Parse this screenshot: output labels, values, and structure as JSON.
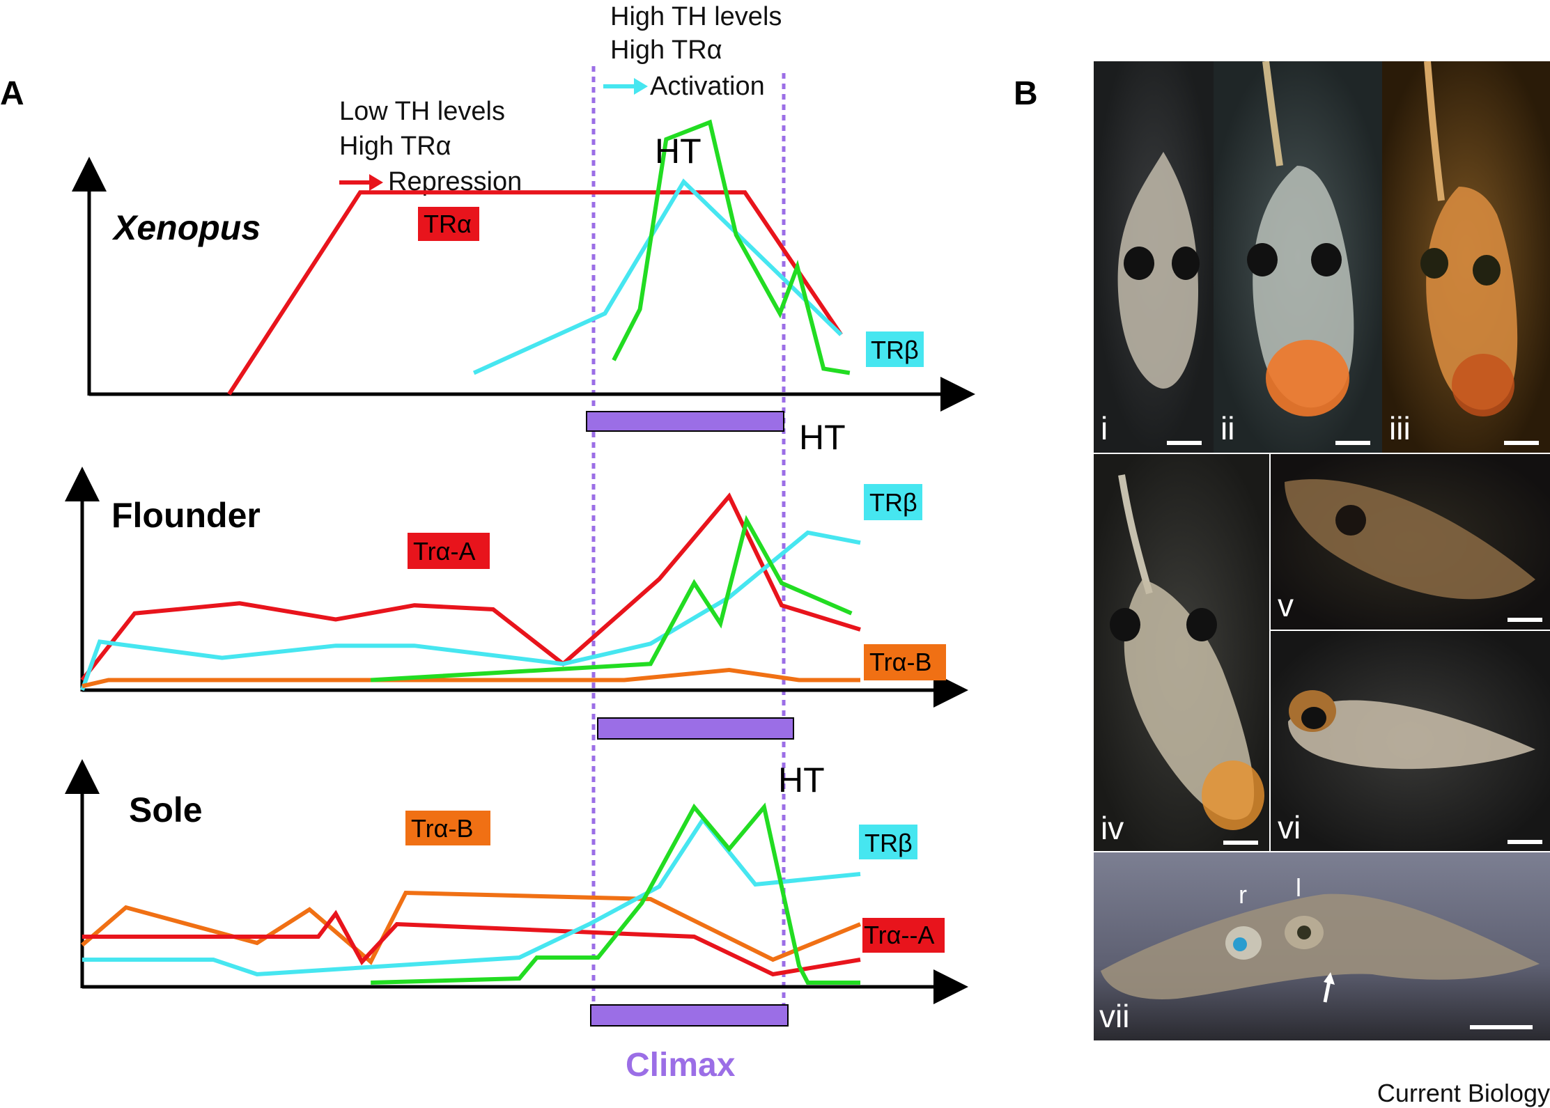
{
  "panel_labels": {
    "a": "A",
    "b": "B"
  },
  "annotations": {
    "repression_lines": [
      "Low TH levels",
      "High TRα",
      "Repression"
    ],
    "activation_lines": [
      "High TH levels",
      "High TRα",
      "Activation"
    ],
    "climax": "Climax"
  },
  "colors": {
    "tra": "#e8141c",
    "trb": "#46e6f0",
    "ht": "#22dc22",
    "tra_b": "#f07014",
    "climax": "#9b6ee6",
    "climax_bar_fill": "#9b6ee6",
    "repression_arrow": "#e8141c",
    "activation_arrow": "#46e6f0"
  },
  "chart_data": [
    {
      "type": "line",
      "species": "Xenopus",
      "tag_labels": {
        "tra": "TRα",
        "trb": "TRβ",
        "ht": "HT"
      },
      "series": [
        {
          "name": "TRα",
          "color": "#e8141c",
          "points": [
            [
              0.16,
              0.0
            ],
            [
              0.31,
              0.95
            ],
            [
              0.75,
              0.95
            ],
            [
              0.86,
              0.28
            ]
          ]
        },
        {
          "name": "TRβ",
          "color": "#46e6f0",
          "points": [
            [
              0.44,
              0.1
            ],
            [
              0.59,
              0.38
            ],
            [
              0.68,
              1.0
            ],
            [
              0.78,
              0.6
            ],
            [
              0.86,
              0.28
            ]
          ]
        },
        {
          "name": "HT",
          "color": "#22dc22",
          "points": [
            [
              0.6,
              0.16
            ],
            [
              0.63,
              0.4
            ],
            [
              0.66,
              1.2
            ],
            [
              0.71,
              1.28
            ],
            [
              0.74,
              0.75
            ],
            [
              0.79,
              0.38
            ],
            [
              0.81,
              0.6
            ],
            [
              0.84,
              0.12
            ],
            [
              0.87,
              0.1
            ]
          ]
        }
      ]
    },
    {
      "type": "line",
      "species": "Flounder",
      "tag_labels": {
        "tra": "Trα-A",
        "trb": "TRβ",
        "tra_b": "Trα-B",
        "ht": "HT"
      },
      "series": [
        {
          "name": "Trα-A",
          "color": "#e8141c",
          "points": [
            [
              0.0,
              0.05
            ],
            [
              0.06,
              0.38
            ],
            [
              0.18,
              0.43
            ],
            [
              0.29,
              0.35
            ],
            [
              0.38,
              0.42
            ],
            [
              0.47,
              0.4
            ],
            [
              0.55,
              0.13
            ],
            [
              0.66,
              0.55
            ],
            [
              0.74,
              0.96
            ],
            [
              0.8,
              0.42
            ],
            [
              0.89,
              0.3
            ]
          ]
        },
        {
          "name": "TRβ",
          "color": "#46e6f0",
          "points": [
            [
              0.0,
              0.0
            ],
            [
              0.02,
              0.24
            ],
            [
              0.16,
              0.16
            ],
            [
              0.29,
              0.22
            ],
            [
              0.38,
              0.22
            ],
            [
              0.55,
              0.13
            ],
            [
              0.65,
              0.23
            ],
            [
              0.74,
              0.46
            ],
            [
              0.83,
              0.78
            ],
            [
              0.89,
              0.73
            ]
          ]
        },
        {
          "name": "Trα-B",
          "color": "#f07014",
          "points": [
            [
              0.0,
              0.02
            ],
            [
              0.03,
              0.05
            ],
            [
              0.62,
              0.05
            ],
            [
              0.74,
              0.1
            ],
            [
              0.82,
              0.05
            ],
            [
              0.89,
              0.05
            ]
          ]
        },
        {
          "name": "HT",
          "color": "#22dc22",
          "points": [
            [
              0.33,
              0.05
            ],
            [
              0.65,
              0.13
            ],
            [
              0.7,
              0.53
            ],
            [
              0.73,
              0.33
            ],
            [
              0.76,
              0.84
            ],
            [
              0.8,
              0.53
            ],
            [
              0.88,
              0.38
            ]
          ]
        }
      ]
    },
    {
      "type": "line",
      "species": "Sole",
      "tag_labels": {
        "tra_b": "Trα-B",
        "trb": "TRβ",
        "tra": "Trα--A",
        "ht": "HT"
      },
      "series": [
        {
          "name": "Trα-B",
          "color": "#f07014",
          "points": [
            [
              0.0,
              0.2
            ],
            [
              0.05,
              0.38
            ],
            [
              0.2,
              0.21
            ],
            [
              0.26,
              0.37
            ],
            [
              0.33,
              0.12
            ],
            [
              0.37,
              0.45
            ],
            [
              0.65,
              0.42
            ],
            [
              0.79,
              0.13
            ],
            [
              0.89,
              0.3
            ]
          ]
        },
        {
          "name": "Trα--A",
          "color": "#e8141c",
          "points": [
            [
              0.0,
              0.24
            ],
            [
              0.27,
              0.24
            ],
            [
              0.29,
              0.35
            ],
            [
              0.32,
              0.12
            ],
            [
              0.36,
              0.3
            ],
            [
              0.7,
              0.24
            ],
            [
              0.79,
              0.06
            ],
            [
              0.89,
              0.13
            ]
          ]
        },
        {
          "name": "TRβ",
          "color": "#46e6f0",
          "points": [
            [
              0.0,
              0.13
            ],
            [
              0.15,
              0.13
            ],
            [
              0.2,
              0.06
            ],
            [
              0.5,
              0.14
            ],
            [
              0.58,
              0.3
            ],
            [
              0.66,
              0.48
            ],
            [
              0.71,
              0.8
            ],
            [
              0.77,
              0.49
            ],
            [
              0.89,
              0.54
            ]
          ]
        },
        {
          "name": "HT",
          "color": "#22dc22",
          "points": [
            [
              0.33,
              0.02
            ],
            [
              0.5,
              0.04
            ],
            [
              0.52,
              0.14
            ],
            [
              0.59,
              0.14
            ],
            [
              0.64,
              0.4
            ],
            [
              0.7,
              0.86
            ],
            [
              0.74,
              0.66
            ],
            [
              0.78,
              0.86
            ],
            [
              0.82,
              0.1
            ],
            [
              0.83,
              0.02
            ],
            [
              0.89,
              0.02
            ]
          ]
        }
      ]
    }
  ],
  "photos": {
    "labels": [
      "i",
      "ii",
      "iii",
      "iv",
      "v",
      "vi",
      "vii"
    ],
    "eye_labels": [
      "r",
      "l"
    ]
  },
  "credit": "Current Biology"
}
